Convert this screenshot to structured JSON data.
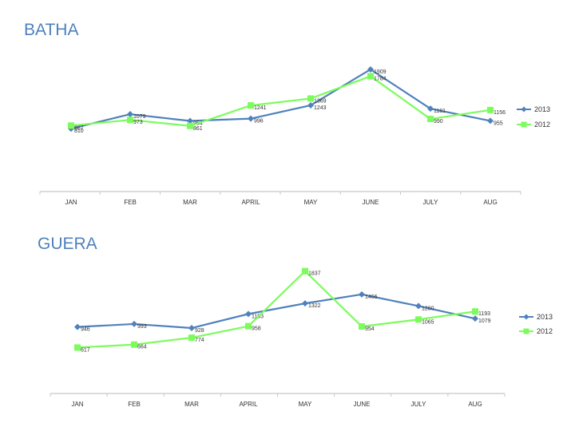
{
  "chart_data": [
    {
      "type": "line",
      "title": "BATHA",
      "categories": [
        "JAN",
        "FEB",
        "MAR",
        "APRIL",
        "MAY",
        "JUNE",
        "JULY",
        "AUG"
      ],
      "series": [
        {
          "name": "2013",
          "color": "#4f81bd",
          "marker": "diamond",
          "values": [
            810,
            1079,
            954,
            996,
            1243,
            1909,
            1181,
            955
          ]
        },
        {
          "name": "2012",
          "color": "#7cfc5c",
          "marker": "square",
          "values": [
            867,
            973,
            861,
            1241,
            1369,
            1784,
            990,
            1156
          ]
        }
      ],
      "xlabel": "",
      "ylabel": "",
      "ylim": [
        0,
        2300
      ],
      "legend": "right"
    },
    {
      "type": "line",
      "title": "GUERA",
      "categories": [
        "JAN",
        "FEB",
        "MAR",
        "APRIL",
        "MAY",
        "JUNE",
        "JULY",
        "AUG"
      ],
      "series": [
        {
          "name": "2013",
          "color": "#4f81bd",
          "marker": "diamond",
          "values": [
            946,
            993,
            928,
            1153,
            1322,
            1466,
            1280,
            1079
          ]
        },
        {
          "name": "2012",
          "color": "#7cfc5c",
          "marker": "square",
          "values": [
            617,
            664,
            774,
            958,
            1837,
            954,
            1065,
            1193
          ]
        }
      ],
      "xlabel": "",
      "ylabel": "",
      "ylim": [
        0,
        2200
      ],
      "legend": "right"
    }
  ]
}
